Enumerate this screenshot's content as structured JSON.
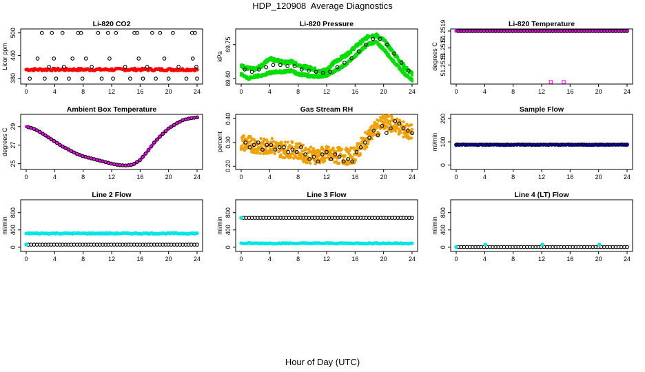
{
  "figure": {
    "title": "HDP_120908  Average Diagnostics",
    "xlabel": "Hour of Day (UTC)"
  },
  "chart_data": [
    {
      "type": "scatter",
      "title": "Li-820 CO2",
      "ylabel": "Licor ppm",
      "xlim": [
        0,
        24
      ],
      "ylim": [
        370,
        505
      ],
      "xticks": [
        0,
        4,
        8,
        12,
        16,
        20,
        24
      ],
      "yticks": [
        380,
        440,
        500
      ],
      "ytick_labels": [
        "380",
        "440",
        "500"
      ],
      "series": [
        {
          "name": "red-points",
          "color": "#ff0000",
          "kind": "band",
          "x0": 0,
          "x1": 24,
          "y": 403,
          "spread": 3
        },
        {
          "name": "black-circles-top",
          "color": "#000000",
          "kind": "open",
          "x": [
            2.2,
            3.6,
            5.1,
            7.3,
            7.7,
            10.1,
            11.5,
            12.6,
            15.2,
            15.6,
            17.7,
            18.8,
            20.6,
            23.3,
            23.7
          ],
          "y": [
            500,
            500,
            500,
            500,
            500,
            500,
            500,
            500,
            500,
            500,
            500,
            500,
            500,
            500,
            500
          ]
        },
        {
          "name": "black-circles-mid",
          "color": "#000000",
          "kind": "open",
          "x": [
            1.6,
            3.2,
            3.9,
            5.3,
            6.5,
            8.4,
            9.2,
            11.7,
            13.9,
            15.8,
            17.0,
            19.4,
            21.4,
            23.4,
            23.9
          ],
          "y": [
            432,
            410,
            432,
            410,
            432,
            432,
            410,
            432,
            410,
            432,
            410,
            432,
            410,
            432,
            410
          ]
        },
        {
          "name": "black-circles-low",
          "color": "#000000",
          "kind": "open",
          "x": [
            0.5,
            2.6,
            4.2,
            6.0,
            7.9,
            10.6,
            12.2,
            14.6,
            16.4,
            18.2,
            20.0,
            22.5,
            24.0
          ],
          "y": [
            379,
            379,
            379,
            379,
            379,
            379,
            379,
            379,
            379,
            379,
            379,
            379,
            379
          ]
        }
      ]
    },
    {
      "type": "scatter",
      "title": "Li-820 Pressure",
      "ylabel": "kPa",
      "xlim": [
        0,
        24
      ],
      "ylim": [
        69.585,
        69.81
      ],
      "xticks": [
        0,
        4,
        8,
        12,
        16,
        20,
        24
      ],
      "yticks": [
        69.6,
        69.75
      ],
      "ytick_labels": [
        "69.60",
        "69.75"
      ],
      "series": [
        {
          "name": "green-upper",
          "color": "#00dd00",
          "kind": "curve",
          "x": [
            0,
            1,
            2,
            3,
            4,
            5,
            6,
            7,
            8,
            9,
            10,
            11,
            12,
            13,
            14,
            15,
            16,
            17,
            18,
            19,
            20,
            21,
            22,
            23,
            24
          ],
          "y": [
            69.655,
            69.645,
            69.64,
            69.66,
            69.69,
            69.68,
            69.67,
            69.675,
            69.66,
            69.65,
            69.645,
            69.63,
            69.64,
            69.67,
            69.69,
            69.71,
            69.74,
            69.765,
            69.79,
            69.79,
            69.77,
            69.73,
            69.69,
            69.65,
            69.62
          ],
          "spread": 0.008
        },
        {
          "name": "green-lower",
          "color": "#00dd00",
          "kind": "curve",
          "x": [
            0,
            1,
            2,
            3,
            4,
            5,
            6,
            7,
            8,
            9,
            10,
            11,
            12,
            13,
            14,
            15,
            16,
            17,
            18,
            19,
            20,
            21,
            22,
            23,
            24
          ],
          "y": [
            69.62,
            69.6,
            69.61,
            69.615,
            69.625,
            69.63,
            69.63,
            69.635,
            69.62,
            69.615,
            69.61,
            69.61,
            69.615,
            69.63,
            69.65,
            69.67,
            69.7,
            69.73,
            69.755,
            69.76,
            69.73,
            69.69,
            69.655,
            69.62,
            69.595
          ],
          "spread": 0.006
        },
        {
          "name": "black-circles",
          "color": "#000000",
          "kind": "open",
          "x": [
            0.5,
            1.5,
            2.5,
            3.5,
            4.5,
            5.5,
            6.5,
            7.5,
            8.5,
            9.5,
            10.5,
            11.5,
            12.5,
            13.5,
            14.5,
            15.5,
            16.5,
            17.5,
            18.5,
            19.5,
            20.5,
            21.5,
            22.5,
            23.5
          ],
          "y": [
            69.64,
            69.63,
            69.64,
            69.65,
            69.66,
            69.66,
            69.655,
            69.655,
            69.64,
            69.635,
            69.63,
            69.625,
            69.63,
            69.65,
            69.67,
            69.69,
            69.72,
            69.75,
            69.775,
            69.775,
            69.75,
            69.71,
            69.67,
            69.635
          ]
        }
      ]
    },
    {
      "type": "scatter",
      "title": "Li-820 Temperature",
      "ylabel": "degrees C",
      "xlim": [
        0,
        24
      ],
      "ylim": [
        51.2513,
        51.2519
      ],
      "xticks": [
        0,
        4,
        8,
        12,
        16,
        20,
        24
      ],
      "yticks": [
        51.2515,
        51.2517,
        51.2519
      ],
      "ytick_labels": [
        "51.2515",
        "51.2517",
        "51.2519"
      ],
      "series": [
        {
          "name": "magenta-line",
          "color": "#ff00ff",
          "kind": "band",
          "x0": 0,
          "x1": 24,
          "y": 51.2519,
          "spread": 0
        },
        {
          "name": "black-circles",
          "color": "#000000",
          "kind": "open-row",
          "x0": 0.3,
          "x1": 24,
          "n": 60,
          "y": 51.2519
        },
        {
          "name": "magenta-outliers",
          "color": "#ff00ff",
          "kind": "open-square",
          "x": [
            13.3,
            15.1
          ],
          "y": [
            51.2513,
            51.2513
          ]
        }
      ]
    },
    {
      "type": "scatter",
      "title": "Ambient Box Temperature",
      "ylabel": "degrees C",
      "xlim": [
        0,
        24
      ],
      "ylim": [
        24.6,
        30.1
      ],
      "xticks": [
        0,
        4,
        8,
        12,
        16,
        20,
        24
      ],
      "yticks": [
        25,
        27,
        29
      ],
      "ytick_labels": [
        "25",
        "27",
        "29"
      ],
      "series": [
        {
          "name": "magenta-line",
          "color": "#ff00ff",
          "kind": "curve",
          "x": [
            0,
            1,
            2,
            3,
            4,
            5,
            6,
            7,
            8,
            9,
            10,
            11,
            12,
            13,
            14,
            15,
            16,
            17,
            18,
            19,
            20,
            21,
            22,
            23,
            24
          ],
          "y": [
            29.0,
            28.8,
            28.4,
            27.9,
            27.4,
            26.9,
            26.5,
            26.1,
            25.8,
            25.6,
            25.4,
            25.2,
            25.0,
            24.85,
            24.8,
            24.9,
            25.4,
            26.3,
            27.3,
            28.1,
            28.8,
            29.3,
            29.7,
            29.9,
            30.0
          ],
          "spread": 0
        },
        {
          "name": "black-circles",
          "color": "#000000",
          "kind": "open-curve",
          "n": 60
        }
      ]
    },
    {
      "type": "scatter",
      "title": "Gas Stream RH",
      "ylabel": "percent",
      "xlim": [
        0,
        24
      ],
      "ylim": [
        0.195,
        0.41
      ],
      "xticks": [
        0,
        4,
        8,
        12,
        16,
        20,
        24
      ],
      "yticks": [
        0.2,
        0.3,
        0.4
      ],
      "ytick_labels": [
        "0.20",
        "0.30",
        "0.40"
      ],
      "series": [
        {
          "name": "orange-cloud",
          "color": "#f0a000",
          "kind": "curve",
          "x": [
            0,
            1,
            2,
            3,
            4,
            5,
            6,
            7,
            8,
            9,
            10,
            11,
            12,
            13,
            14,
            15,
            16,
            17,
            18,
            19,
            20,
            21,
            22,
            23,
            24
          ],
          "y": [
            0.3,
            0.295,
            0.29,
            0.28,
            0.29,
            0.275,
            0.27,
            0.27,
            0.265,
            0.25,
            0.245,
            0.245,
            0.25,
            0.245,
            0.245,
            0.24,
            0.25,
            0.29,
            0.33,
            0.36,
            0.38,
            0.38,
            0.37,
            0.35,
            0.34
          ],
          "spread": 0.035
        },
        {
          "name": "black-circles",
          "color": "#000000",
          "kind": "open",
          "x": [
            0.6,
            1.2,
            1.8,
            2.4,
            3.0,
            3.6,
            4.2,
            4.8,
            5.4,
            6.0,
            6.6,
            7.2,
            7.8,
            8.4,
            9.0,
            9.6,
            10.2,
            10.8,
            11.4,
            12.0,
            12.6,
            13.2,
            13.8,
            14.4,
            15.0,
            15.6,
            16.2,
            16.8,
            17.4,
            18.0,
            18.6,
            19.2,
            19.8,
            20.4,
            21.0,
            21.6,
            22.2,
            22.8,
            23.4,
            24.0
          ],
          "y": [
            0.3,
            0.28,
            0.29,
            0.3,
            0.27,
            0.29,
            0.29,
            0.27,
            0.28,
            0.28,
            0.26,
            0.27,
            0.26,
            0.28,
            0.25,
            0.23,
            0.24,
            0.22,
            0.25,
            0.26,
            0.23,
            0.25,
            0.24,
            0.22,
            0.23,
            0.22,
            0.26,
            0.28,
            0.3,
            0.32,
            0.35,
            0.33,
            0.37,
            0.34,
            0.36,
            0.39,
            0.38,
            0.36,
            0.35,
            0.34
          ]
        }
      ]
    },
    {
      "type": "scatter",
      "title": "Sample Flow",
      "ylabel": "ml/min",
      "xlim": [
        0,
        24
      ],
      "ylim": [
        -10,
        210
      ],
      "xticks": [
        0,
        4,
        8,
        12,
        16,
        20,
        24
      ],
      "yticks": [
        0,
        100,
        200
      ],
      "ytick_labels": [
        "0",
        "100",
        "200"
      ],
      "series": [
        {
          "name": "blue-line",
          "color": "#0000cc",
          "kind": "band",
          "x0": 0,
          "x1": 24,
          "y": 88,
          "spread": 2
        },
        {
          "name": "black-circles",
          "color": "#000000",
          "kind": "open-row",
          "x0": 0,
          "x1": 24,
          "n": 60,
          "y": 88
        }
      ]
    },
    {
      "type": "scatter",
      "title": "Line 2 Flow",
      "ylabel": "ml/min",
      "xlim": [
        0,
        24
      ],
      "ylim": [
        -50,
        1050
      ],
      "xticks": [
        0,
        4,
        8,
        12,
        16,
        20,
        24
      ],
      "yticks": [
        0,
        400,
        800
      ],
      "ytick_labels": [
        "0",
        "400",
        "800"
      ],
      "series": [
        {
          "name": "cyan-line",
          "color": "#00e5e5",
          "kind": "band",
          "x0": 0,
          "x1": 24,
          "y": 320,
          "spread": 12
        },
        {
          "name": "black-circles",
          "color": "#000000",
          "kind": "open-row",
          "x0": 0.3,
          "x1": 24,
          "n": 60,
          "y": 60
        },
        {
          "name": "cyan-start",
          "color": "#00e5e5",
          "kind": "filled",
          "x": [
            0
          ],
          "y": [
            60
          ]
        }
      ]
    },
    {
      "type": "scatter",
      "title": "Line 3 Flow",
      "ylabel": "ml/min",
      "xlim": [
        0,
        24
      ],
      "ylim": [
        -50,
        1050
      ],
      "xticks": [
        0,
        4,
        8,
        12,
        16,
        20,
        24
      ],
      "yticks": [
        0,
        400,
        800
      ],
      "ytick_labels": [
        "0",
        "400",
        "800"
      ],
      "series": [
        {
          "name": "cyan-line",
          "color": "#00e5e5",
          "kind": "band",
          "x0": 0,
          "x1": 24,
          "y": 90,
          "spread": 10
        },
        {
          "name": "black-circles",
          "color": "#000000",
          "kind": "open-row",
          "x0": 0.3,
          "x1": 24,
          "n": 60,
          "y": 680
        },
        {
          "name": "cyan-start",
          "color": "#00e5e5",
          "kind": "filled",
          "x": [
            0
          ],
          "y": [
            680
          ]
        }
      ]
    },
    {
      "type": "scatter",
      "title": "Line 4 (LT) Flow",
      "ylabel": "ml/min",
      "xlim": [
        0,
        24
      ],
      "ylim": [
        -50,
        1050
      ],
      "xticks": [
        0,
        4,
        8,
        12,
        16,
        20,
        24
      ],
      "yticks": [
        0,
        400,
        800
      ],
      "ytick_labels": [
        "0",
        "400",
        "800"
      ],
      "series": [
        {
          "name": "black-circles",
          "color": "#000000",
          "kind": "open-row",
          "x0": 0.3,
          "x1": 24,
          "n": 60,
          "y": 5
        },
        {
          "name": "cyan-points",
          "color": "#00e5e5",
          "kind": "filled",
          "x": [
            0,
            4.1,
            12.1,
            20.1
          ],
          "y": [
            5,
            60,
            60,
            60
          ]
        }
      ]
    }
  ]
}
